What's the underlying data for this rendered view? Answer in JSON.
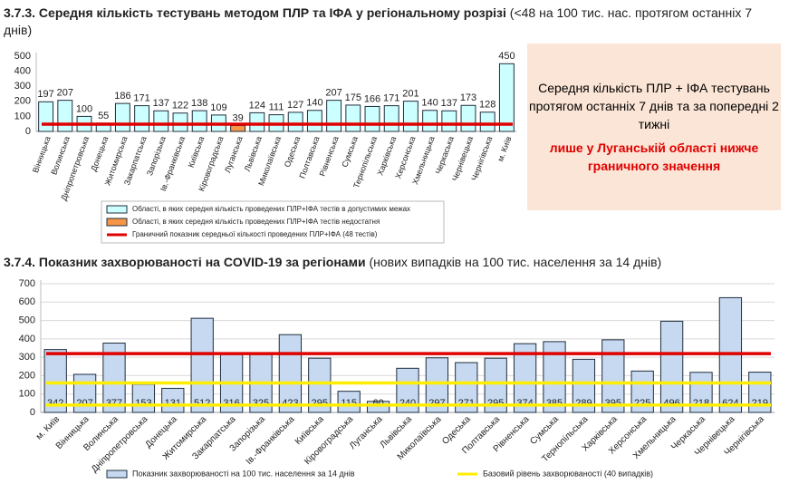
{
  "chart_data": [
    {
      "type": "bar",
      "title": "3.7.3. Середня кількість тестувань методом ПЛР та ІФА у регіональному розрізі",
      "subtitle": "(<48 на 100 тис. нас. протягом останніх 7 днів)",
      "categories": [
        "Вінницька",
        "Волинська",
        "Дніпропетровська",
        "Донецька",
        "Житомирська",
        "Закарпатська",
        "Запорізька",
        "Ів.-Франківська",
        "Київська",
        "Кіровоградська",
        "Луганська",
        "Львівська",
        "Миколаївська",
        "Одеська",
        "Полтавська",
        "Рівненська",
        "Сумська",
        "Тернопільська",
        "Харківська",
        "Херсонська",
        "Хмельницька",
        "Черкаська",
        "Чернівецька",
        "Чернігівська",
        "м. Київ"
      ],
      "series": [
        {
          "name": "Області, в яких середня кількість проведених ПЛР+ІФА тестів в допустимих межах",
          "color": "#ccffff",
          "values": [
            197,
            207,
            100,
            55,
            186,
            171,
            137,
            122,
            138,
            109,
            null,
            124,
            111,
            127,
            140,
            207,
            175,
            166,
            171,
            201,
            140,
            137,
            173,
            128,
            450
          ]
        },
        {
          "name": "Області, в яких середня кількість проведених ПЛР+ІФА тестів недостатня",
          "color": "#f79646",
          "values": [
            null,
            null,
            null,
            null,
            null,
            null,
            null,
            null,
            null,
            null,
            39,
            null,
            null,
            null,
            null,
            null,
            null,
            null,
            null,
            null,
            null,
            null,
            null,
            null,
            null
          ]
        }
      ],
      "reference_lines": [
        {
          "name": "Граничний показник середньої кількості проведених ПЛР+ІФА (48 тестів)",
          "value": 48,
          "color": "#e00000"
        }
      ],
      "ylim": [
        0,
        500
      ],
      "yticks": [
        0,
        100,
        200,
        300,
        400,
        500
      ],
      "grid": false,
      "value_label_position": "top",
      "legend": "bottom-column"
    },
    {
      "type": "bar",
      "title": "3.7.4. Показник захворюваності на COVID-19 за регіонами",
      "subtitle": "(нових випадків на 100 тис. населення за 14 днів)",
      "categories": [
        "м. Київ",
        "Вінницька",
        "Волинська",
        "Дніпропетровська",
        "Донецька",
        "Житомирська",
        "Закарпатська",
        "Запорізька",
        "Ів.-Франківська",
        "Київська",
        "Кіровоградська",
        "Луганська",
        "Львівська",
        "Миколаївська",
        "Одеська",
        "Полтавська",
        "Рівненська",
        "Сумська",
        "Тернопільська",
        "Харківська",
        "Херсонська",
        "Хмельницька",
        "Черкаська",
        "Чернівецька",
        "Чернігівська"
      ],
      "series": [
        {
          "name": "Показник захворюваності на 100 тис. населення за 14 днів",
          "color": "#c6d9f1",
          "values": [
            342,
            207,
            377,
            153,
            131,
            512,
            316,
            325,
            423,
            295,
            115,
            60,
            240,
            297,
            271,
            295,
            374,
            385,
            289,
            395,
            225,
            496,
            218,
            624,
            219
          ]
        }
      ],
      "reference_lines": [
        {
          "value": 320,
          "color": "#e00000"
        },
        {
          "value": 160,
          "color": "#ffee00"
        },
        {
          "name": "Базовий рівень захворюваності (40 випадків)",
          "value": 40,
          "color": "#ffee00"
        }
      ],
      "ylim": [
        0,
        700
      ],
      "yticks": [
        0,
        100,
        200,
        300,
        400,
        500,
        600,
        700
      ],
      "grid": true,
      "value_label_position": "base",
      "legend": "bottom-row"
    }
  ],
  "note": {
    "text": "Середня кількість ПЛР + ІФА тестувань протягом останніх 7 днів та за попередні 2 тижні",
    "highlight": "лише у Луганській області нижче граничного значення"
  }
}
